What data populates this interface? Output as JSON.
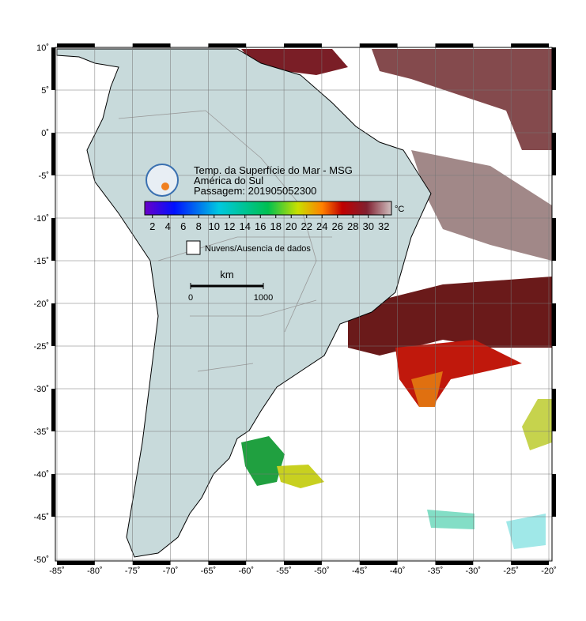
{
  "map": {
    "title_lines": [
      "Temp. da Superfície do Mar - MSG",
      "América do Sul",
      "Passagem: 201905052300"
    ],
    "colorbar": {
      "range": [
        1,
        33
      ],
      "ticks": [
        2,
        4,
        6,
        8,
        10,
        12,
        14,
        16,
        18,
        20,
        22,
        24,
        26,
        28,
        30,
        32
      ],
      "unit": "°C"
    },
    "legend": "Nuvens/Ausencia de dados",
    "scale": {
      "unit": "km",
      "ticks": [
        0,
        1000
      ]
    },
    "xlim": [
      -85,
      -20
    ],
    "ylim": [
      -50,
      10
    ],
    "xticks": [
      {
        "value": -85,
        "label": "-85˚"
      },
      {
        "value": -80,
        "label": "-80˚"
      },
      {
        "value": -75,
        "label": "-75˚"
      },
      {
        "value": -70,
        "label": "-70˚"
      },
      {
        "value": -65,
        "label": "-65˚"
      },
      {
        "value": -60,
        "label": "-60˚"
      },
      {
        "value": -55,
        "label": "-55˚"
      },
      {
        "value": -50,
        "label": "-50˚"
      },
      {
        "value": -45,
        "label": "-45˚"
      },
      {
        "value": -40,
        "label": "-40˚"
      },
      {
        "value": -35,
        "label": "-35˚"
      },
      {
        "value": -30,
        "label": "-30˚"
      },
      {
        "value": -25,
        "label": "-25˚"
      },
      {
        "value": -20,
        "label": "-20˚"
      }
    ],
    "yticks": [
      {
        "value": 10,
        "label": "10˚"
      },
      {
        "value": 5,
        "label": "5˚"
      },
      {
        "value": 0,
        "label": "0˚"
      },
      {
        "value": -5,
        "label": "-5˚"
      },
      {
        "value": -10,
        "label": "-10˚"
      },
      {
        "value": -15,
        "label": "-15˚"
      },
      {
        "value": -20,
        "label": "-20˚"
      },
      {
        "value": -25,
        "label": "-25˚"
      },
      {
        "value": -30,
        "label": "-30˚"
      },
      {
        "value": -35,
        "label": "-35˚"
      },
      {
        "value": -40,
        "label": "-40˚"
      },
      {
        "value": -45,
        "label": "-45˚"
      },
      {
        "value": -50,
        "label": "-50˚"
      }
    ]
  }
}
